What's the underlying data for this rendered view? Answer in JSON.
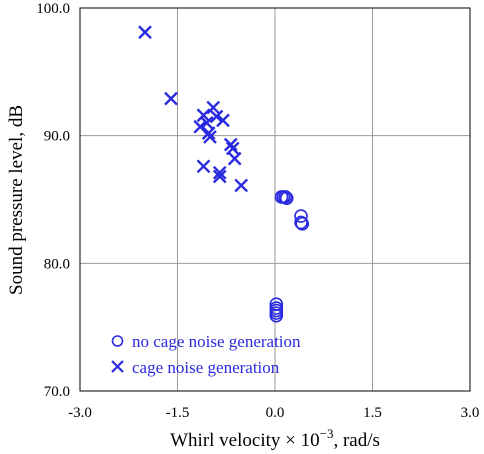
{
  "chart_data": {
    "type": "scatter",
    "xlabel_prefix": "Whirl velocity × 10",
    "xlabel_exp": "−3",
    "xlabel_suffix": ", rad/s",
    "ylabel": "Sound pressure level, dB",
    "xlim": [
      -3.0,
      3.0
    ],
    "ylim": [
      70.0,
      100.0
    ],
    "x_ticks": [
      -3.0,
      -1.5,
      0.0,
      1.5,
      3.0
    ],
    "x_tick_labels": [
      "-3.0",
      "-1.5",
      "0.0",
      "1.5",
      "3.0"
    ],
    "y_ticks": [
      70.0,
      80.0,
      90.0,
      100.0
    ],
    "y_tick_labels": [
      "70.0",
      "80.0",
      "90.0",
      "100.0"
    ],
    "grid": true,
    "legend_position": "bottom-left",
    "series": [
      {
        "name": "no cage noise generation",
        "marker": "circle",
        "color": "#2a2ae0",
        "points": [
          [
            0.1,
            85.2
          ],
          [
            0.13,
            85.2
          ],
          [
            0.16,
            85.2
          ],
          [
            0.18,
            85.1
          ],
          [
            0.4,
            83.7
          ],
          [
            0.4,
            83.2
          ],
          [
            0.42,
            83.1
          ],
          [
            0.02,
            76.8
          ],
          [
            0.02,
            76.5
          ],
          [
            0.02,
            76.3
          ],
          [
            0.02,
            76.1
          ],
          [
            0.02,
            75.9
          ]
        ]
      },
      {
        "name": "cage noise generation",
        "marker": "x",
        "color": "#2a2ae0",
        "points": [
          [
            -2.0,
            98.1
          ],
          [
            -1.6,
            92.9
          ],
          [
            -0.95,
            92.2
          ],
          [
            -1.1,
            91.6
          ],
          [
            -0.9,
            91.5
          ],
          [
            -1.05,
            91.0
          ],
          [
            -0.8,
            91.2
          ],
          [
            -1.15,
            90.7
          ],
          [
            -1.02,
            90.2
          ],
          [
            -1.0,
            89.9
          ],
          [
            -0.68,
            89.3
          ],
          [
            -0.65,
            89.0
          ],
          [
            -0.62,
            88.2
          ],
          [
            -1.1,
            87.6
          ],
          [
            -0.85,
            87.1
          ],
          [
            -0.85,
            86.8
          ],
          [
            -0.52,
            86.1
          ]
        ]
      }
    ]
  }
}
